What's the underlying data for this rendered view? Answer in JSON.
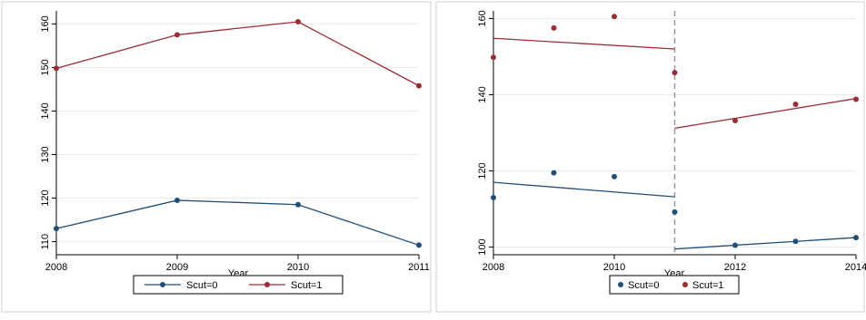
{
  "colors": {
    "scut0": "#1f4e79",
    "scut1": "#9b2d35",
    "cutoff": "#999999"
  },
  "chart_data": [
    {
      "type": "line",
      "x": [
        2008,
        2009,
        2010,
        2011
      ],
      "series": [
        {
          "name": "Scut=0",
          "values": [
            113.0,
            119.5,
            118.5,
            109.2
          ]
        },
        {
          "name": "Scut=1",
          "values": [
            149.8,
            157.5,
            160.5,
            145.8
          ]
        }
      ],
      "xlabel": "Year",
      "ylabel": "",
      "xlim": [
        2008,
        2011
      ],
      "ylim": [
        107,
        163
      ],
      "xticks": [
        "2008",
        "2009",
        "2010",
        "2011"
      ],
      "yticks": [
        "110",
        "120",
        "130",
        "140",
        "150",
        "160"
      ],
      "grid": true,
      "legend": "bottom-center",
      "legend_labels": [
        "Scut=0",
        "Scut=1"
      ]
    },
    {
      "type": "scatter",
      "x": [
        2008,
        2009,
        2010,
        2011,
        2012,
        2013,
        2014
      ],
      "series": [
        {
          "name": "Scut=0",
          "values": [
            113.0,
            119.5,
            118.5,
            109.2,
            100.5,
            101.5,
            102.5
          ]
        },
        {
          "name": "Scut=1",
          "values": [
            149.8,
            157.5,
            160.5,
            145.8,
            133.2,
            137.5,
            138.8
          ]
        }
      ],
      "fit_lines": [
        {
          "series": "Scut=1",
          "x": [
            2008,
            2011
          ],
          "y": [
            154.8,
            152.0
          ]
        },
        {
          "series": "Scut=1",
          "x": [
            2011,
            2014
          ],
          "y": [
            131.2,
            139.0
          ]
        },
        {
          "series": "Scut=0",
          "x": [
            2008,
            2011
          ],
          "y": [
            117.0,
            113.2
          ]
        },
        {
          "series": "Scut=0",
          "x": [
            2011,
            2014
          ],
          "y": [
            99.5,
            102.5
          ]
        }
      ],
      "cutoff_x": 2011,
      "xlabel": "Year",
      "ylabel": "",
      "xlim": [
        2008,
        2014
      ],
      "ylim": [
        98,
        162
      ],
      "xticks": [
        "2008",
        "2010",
        "2012",
        "2014"
      ],
      "yticks": [
        "100",
        "120",
        "140",
        "160"
      ],
      "grid": true,
      "legend": "bottom-center",
      "legend_labels": [
        "Scut=0",
        "Scut=1"
      ]
    }
  ]
}
